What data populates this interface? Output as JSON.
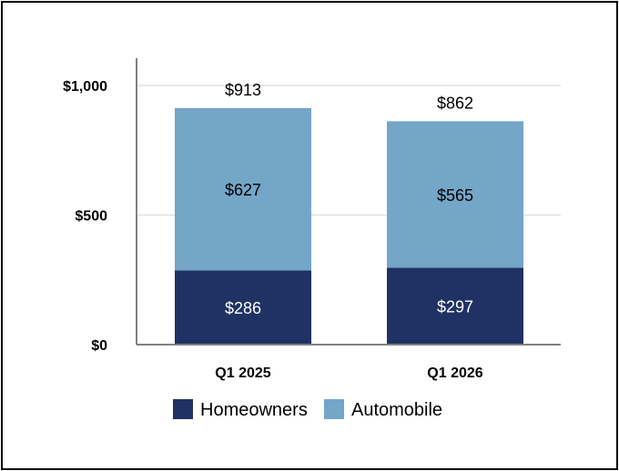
{
  "chart_data": {
    "type": "bar",
    "stacked": true,
    "categories": [
      "Q1 2025",
      "Q1 2026"
    ],
    "series": [
      {
        "name": "Homeowners",
        "values": [
          286,
          297
        ],
        "value_labels": [
          "$286",
          "$297"
        ],
        "color": "#1f3263",
        "label_color": "#ffffff"
      },
      {
        "name": "Automobile",
        "values": [
          627,
          565
        ],
        "value_labels": [
          "$627",
          "$565"
        ],
        "color": "#74a6c8",
        "label_color": "#000000"
      }
    ],
    "totals": [
      913,
      862
    ],
    "total_labels": [
      "$913",
      "$862"
    ],
    "yticks": [
      {
        "value": 0,
        "label": "$0"
      },
      {
        "value": 500,
        "label": "$500"
      },
      {
        "value": 1000,
        "label": "$1,000"
      }
    ],
    "ylim": [
      0,
      1000
    ],
    "grid": true,
    "legend_position": "bottom",
    "colors": {
      "axis": "#808080",
      "grid": "#e0e0e0"
    }
  }
}
